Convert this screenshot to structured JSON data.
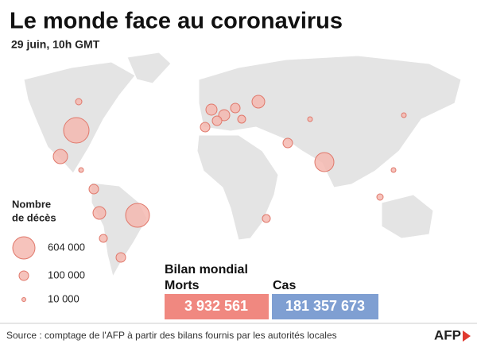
{
  "header": {
    "title": "Le monde face au coronavirus",
    "subtitle": "29 juin, 10h GMT"
  },
  "legend": {
    "title": "Nombre\nde décès",
    "items": [
      "604 000",
      "100 000",
      "10 000"
    ]
  },
  "totals": {
    "title": "Bilan mondial",
    "deaths_label": "Morts",
    "deaths": "3 932 561",
    "cases_label": "Cas",
    "cases": "181 357 673"
  },
  "source": "Source : comptage de l'AFP à partir des bilans fournis par les autorités locales",
  "logo": "AFP"
}
